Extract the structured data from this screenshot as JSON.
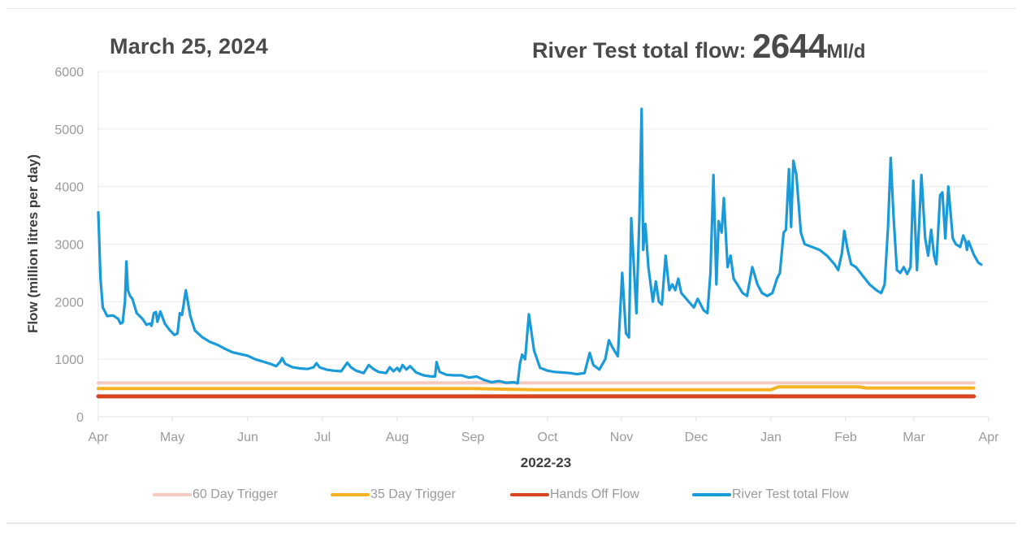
{
  "header": {
    "date": "March 25, 2024",
    "flow_label": "River Test total flow: ",
    "flow_value": "2644",
    "flow_unit": "Ml/d"
  },
  "chart_data": {
    "type": "line",
    "title": "River Test total flow: 2644Ml/d",
    "subtitle": "March 25, 2024",
    "xlabel": "2022-23",
    "ylabel": "Flow (million litres per day)",
    "ylim": [
      0,
      6000
    ],
    "yticks": [
      0,
      1000,
      2000,
      3000,
      4000,
      5000,
      6000
    ],
    "xticks": [
      "Apr",
      "May",
      "Jun",
      "Jul",
      "Aug",
      "Sep",
      "Oct",
      "Nov",
      "Dec",
      "Jan",
      "Feb",
      "Mar",
      "Apr"
    ],
    "grid": true,
    "legend_position": "bottom",
    "x_unit": "month index from 1 Apr (0 = Apr, 12 = next Apr)",
    "series": [
      {
        "name": "60 Day Trigger",
        "color": "#f6c9c3",
        "points": [
          [
            0,
            590
          ],
          [
            11.8,
            590
          ]
        ]
      },
      {
        "name": "35 Day Trigger",
        "color": "#f5b324",
        "points": [
          [
            0,
            490
          ],
          [
            5.0,
            490
          ],
          [
            5.8,
            470
          ],
          [
            9.0,
            470
          ],
          [
            9.1,
            520
          ],
          [
            10.2,
            520
          ],
          [
            10.3,
            500
          ],
          [
            11.8,
            500
          ]
        ]
      },
      {
        "name": "Hands Off Flow",
        "color": "#d9441f",
        "points": [
          [
            0,
            355
          ],
          [
            11.8,
            355
          ]
        ]
      },
      {
        "name": "River Test total Flow",
        "color": "#1a9ad9",
        "points": [
          [
            0.0,
            3550
          ],
          [
            0.03,
            2400
          ],
          [
            0.06,
            1900
          ],
          [
            0.12,
            1750
          ],
          [
            0.2,
            1760
          ],
          [
            0.27,
            1700
          ],
          [
            0.3,
            1620
          ],
          [
            0.33,
            1640
          ],
          [
            0.36,
            2000
          ],
          [
            0.38,
            2700
          ],
          [
            0.4,
            2200
          ],
          [
            0.43,
            2100
          ],
          [
            0.46,
            2050
          ],
          [
            0.52,
            1800
          ],
          [
            0.6,
            1700
          ],
          [
            0.65,
            1600
          ],
          [
            0.7,
            1620
          ],
          [
            0.72,
            1580
          ],
          [
            0.75,
            1800
          ],
          [
            0.78,
            1820
          ],
          [
            0.8,
            1650
          ],
          [
            0.84,
            1830
          ],
          [
            0.9,
            1620
          ],
          [
            0.97,
            1500
          ],
          [
            1.03,
            1420
          ],
          [
            1.07,
            1450
          ],
          [
            1.1,
            1800
          ],
          [
            1.13,
            1770
          ],
          [
            1.18,
            2200
          ],
          [
            1.24,
            1750
          ],
          [
            1.3,
            1500
          ],
          [
            1.4,
            1380
          ],
          [
            1.5,
            1300
          ],
          [
            1.6,
            1250
          ],
          [
            1.7,
            1180
          ],
          [
            1.8,
            1120
          ],
          [
            1.9,
            1090
          ],
          [
            2.0,
            1060
          ],
          [
            2.1,
            1000
          ],
          [
            2.2,
            960
          ],
          [
            2.3,
            920
          ],
          [
            2.38,
            880
          ],
          [
            2.43,
            950
          ],
          [
            2.46,
            1020
          ],
          [
            2.5,
            920
          ],
          [
            2.6,
            860
          ],
          [
            2.7,
            840
          ],
          [
            2.8,
            830
          ],
          [
            2.88,
            860
          ],
          [
            2.92,
            930
          ],
          [
            2.96,
            860
          ],
          [
            3.05,
            820
          ],
          [
            3.15,
            800
          ],
          [
            3.25,
            790
          ],
          [
            3.33,
            940
          ],
          [
            3.38,
            860
          ],
          [
            3.45,
            800
          ],
          [
            3.55,
            760
          ],
          [
            3.62,
            900
          ],
          [
            3.68,
            830
          ],
          [
            3.75,
            780
          ],
          [
            3.85,
            760
          ],
          [
            3.9,
            860
          ],
          [
            3.95,
            790
          ],
          [
            4.0,
            850
          ],
          [
            4.03,
            790
          ],
          [
            4.07,
            900
          ],
          [
            4.12,
            820
          ],
          [
            4.17,
            880
          ],
          [
            4.25,
            770
          ],
          [
            4.35,
            720
          ],
          [
            4.45,
            700
          ],
          [
            4.5,
            700
          ],
          [
            4.52,
            950
          ],
          [
            4.56,
            780
          ],
          [
            4.65,
            730
          ],
          [
            4.75,
            720
          ],
          [
            4.85,
            720
          ],
          [
            4.95,
            680
          ],
          [
            5.05,
            700
          ],
          [
            5.15,
            640
          ],
          [
            5.25,
            600
          ],
          [
            5.35,
            620
          ],
          [
            5.45,
            590
          ],
          [
            5.55,
            600
          ],
          [
            5.6,
            580
          ],
          [
            5.63,
            920
          ],
          [
            5.66,
            1080
          ],
          [
            5.7,
            1000
          ],
          [
            5.75,
            1780
          ],
          [
            5.82,
            1150
          ],
          [
            5.9,
            850
          ],
          [
            6.0,
            800
          ],
          [
            6.1,
            780
          ],
          [
            6.2,
            770
          ],
          [
            6.3,
            760
          ],
          [
            6.4,
            740
          ],
          [
            6.5,
            760
          ],
          [
            6.57,
            1110
          ],
          [
            6.62,
            900
          ],
          [
            6.7,
            820
          ],
          [
            6.78,
            1000
          ],
          [
            6.83,
            1330
          ],
          [
            6.88,
            1200
          ],
          [
            6.95,
            1050
          ],
          [
            7.01,
            2500
          ],
          [
            7.06,
            1450
          ],
          [
            7.1,
            1380
          ],
          [
            7.13,
            3450
          ],
          [
            7.2,
            1800
          ],
          [
            7.24,
            3500
          ],
          [
            7.27,
            5350
          ],
          [
            7.29,
            2900
          ],
          [
            7.32,
            3350
          ],
          [
            7.36,
            2600
          ],
          [
            7.42,
            2000
          ],
          [
            7.46,
            2350
          ],
          [
            7.5,
            2000
          ],
          [
            7.54,
            1950
          ],
          [
            7.59,
            2800
          ],
          [
            7.64,
            2200
          ],
          [
            7.68,
            2300
          ],
          [
            7.72,
            2200
          ],
          [
            7.76,
            2400
          ],
          [
            7.8,
            2150
          ],
          [
            7.9,
            2000
          ],
          [
            7.97,
            1900
          ],
          [
            8.02,
            2050
          ],
          [
            8.1,
            1850
          ],
          [
            8.15,
            1800
          ],
          [
            8.19,
            2500
          ],
          [
            8.23,
            4200
          ],
          [
            8.27,
            2300
          ],
          [
            8.3,
            3400
          ],
          [
            8.34,
            3200
          ],
          [
            8.37,
            3800
          ],
          [
            8.42,
            2600
          ],
          [
            8.46,
            2800
          ],
          [
            8.5,
            2400
          ],
          [
            8.55,
            2300
          ],
          [
            8.62,
            2150
          ],
          [
            8.68,
            2100
          ],
          [
            8.75,
            2600
          ],
          [
            8.82,
            2300
          ],
          [
            8.88,
            2150
          ],
          [
            8.95,
            2100
          ],
          [
            9.02,
            2150
          ],
          [
            9.08,
            2400
          ],
          [
            9.12,
            2500
          ],
          [
            9.17,
            3200
          ],
          [
            9.2,
            3250
          ],
          [
            9.24,
            4300
          ],
          [
            9.27,
            3300
          ],
          [
            9.3,
            4450
          ],
          [
            9.34,
            4200
          ],
          [
            9.4,
            3200
          ],
          [
            9.45,
            3000
          ],
          [
            9.55,
            2950
          ],
          [
            9.65,
            2900
          ],
          [
            9.75,
            2800
          ],
          [
            9.85,
            2650
          ],
          [
            9.9,
            2550
          ],
          [
            9.95,
            2850
          ],
          [
            9.98,
            3230
          ],
          [
            10.03,
            2900
          ],
          [
            10.08,
            2650
          ],
          [
            10.15,
            2600
          ],
          [
            10.25,
            2450
          ],
          [
            10.35,
            2300
          ],
          [
            10.45,
            2200
          ],
          [
            10.52,
            2150
          ],
          [
            10.57,
            2300
          ],
          [
            10.62,
            3300
          ],
          [
            10.66,
            4500
          ],
          [
            10.7,
            3500
          ],
          [
            10.75,
            2550
          ],
          [
            10.8,
            2500
          ],
          [
            10.85,
            2600
          ],
          [
            10.9,
            2480
          ],
          [
            10.95,
            2600
          ],
          [
            10.99,
            4100
          ],
          [
            11.04,
            2550
          ],
          [
            11.1,
            4200
          ],
          [
            11.15,
            3100
          ],
          [
            11.19,
            2800
          ],
          [
            11.23,
            3250
          ],
          [
            11.27,
            2800
          ],
          [
            11.3,
            2650
          ],
          [
            11.35,
            3850
          ],
          [
            11.38,
            3900
          ],
          [
            11.42,
            3100
          ],
          [
            11.46,
            4000
          ],
          [
            11.52,
            3100
          ],
          [
            11.56,
            3000
          ],
          [
            11.62,
            2950
          ],
          [
            11.66,
            3150
          ],
          [
            11.69,
            3050
          ],
          [
            11.71,
            2900
          ],
          [
            11.73,
            3050
          ],
          [
            11.8,
            2820
          ],
          [
            11.86,
            2680
          ],
          [
            11.9,
            2644
          ]
        ]
      }
    ]
  },
  "legend": {
    "items": [
      {
        "label": "60 Day Trigger",
        "color": "#f6c9c3"
      },
      {
        "label": "35 Day Trigger",
        "color": "#f5b324"
      },
      {
        "label": "Hands Off Flow",
        "color": "#d9441f"
      },
      {
        "label": "River Test total Flow",
        "color": "#1a9ad9"
      }
    ]
  }
}
